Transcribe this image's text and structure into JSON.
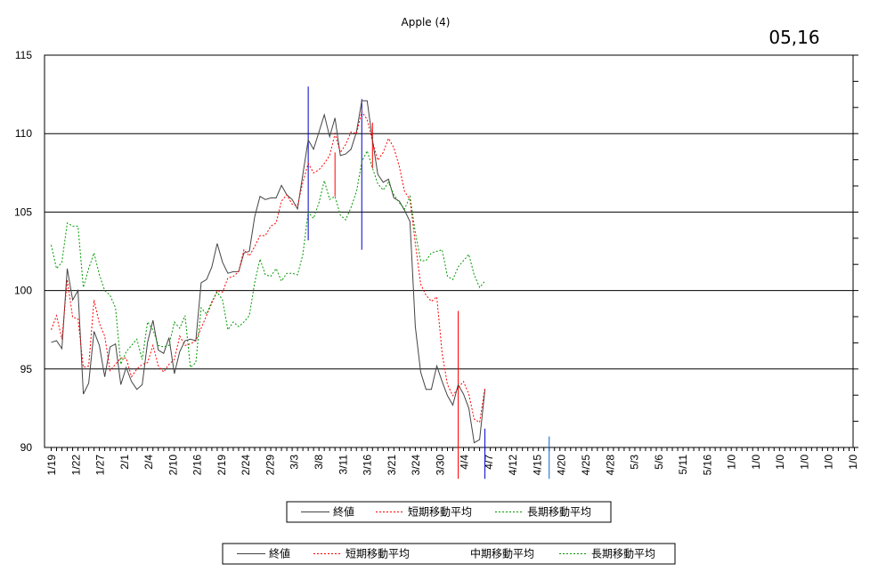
{
  "chart_data": {
    "type": "line",
    "title": "Apple (4)",
    "stamp": "05,16",
    "xlabel": "",
    "ylabel": "",
    "ylim": [
      90,
      115
    ],
    "yticks": [
      90,
      95,
      100,
      105,
      110,
      115
    ],
    "grid": "horizontal",
    "x_tick_labels": [
      "1/19",
      "1/22",
      "1/27",
      "2/1",
      "2/4",
      "2/10",
      "2/16",
      "2/19",
      "2/24",
      "2/29",
      "3/3",
      "3/8",
      "3/11",
      "3/16",
      "3/21",
      "3/24",
      "3/30",
      "4/4",
      "4/7",
      "4/12",
      "4/15",
      "4/20",
      "4/25",
      "4/28",
      "5/3",
      "5/6",
      "5/11",
      "5/16",
      "1/0",
      "1/0",
      "1/0",
      "1/0",
      "1/0",
      "1/0"
    ],
    "series": [
      {
        "name": "終値",
        "color": "#444444",
        "dash": "solid",
        "values": [
          96.7,
          96.8,
          96.3,
          101.4,
          99.4,
          100.0,
          93.4,
          94.1,
          97.4,
          96.5,
          94.5,
          96.4,
          96.6,
          94.0,
          95.1,
          94.2,
          93.7,
          94.0,
          96.7,
          98.1,
          96.2,
          96.0,
          97.0,
          94.7,
          96.1,
          96.8,
          96.9,
          96.8,
          100.5,
          100.7,
          101.5,
          103.0,
          101.8,
          101.1,
          101.2,
          101.2,
          102.4,
          102.5,
          104.7,
          106.0,
          105.8,
          105.9,
          105.9,
          106.7,
          106.1,
          105.8,
          105.2,
          107.4,
          109.6,
          109.0,
          110.1,
          111.2,
          109.8,
          111.0,
          108.6,
          108.7,
          109.0,
          110.1,
          112.1,
          112.1,
          109.6,
          107.4,
          106.9,
          107.1,
          105.9,
          105.7,
          105.1,
          104.4,
          97.7,
          94.8,
          93.7,
          93.7,
          95.2,
          94.2,
          93.3,
          92.7,
          94.0,
          93.4,
          92.5,
          90.3,
          90.5,
          93.7
        ]
      },
      {
        "name": "短期移動平均",
        "color": "#ff0000",
        "dash": "dashed",
        "values": [
          97.5,
          98.4,
          96.9,
          100.7,
          98.3,
          98.2,
          95.1,
          95.2,
          99.4,
          97.9,
          97.1,
          94.9,
          95.3,
          95.7,
          95.7,
          94.5,
          95.0,
          95.3,
          95.4,
          96.5,
          95.2,
          94.8,
          95.3,
          95.6,
          97.1,
          96.5,
          96.6,
          96.8,
          97.6,
          98.4,
          99.2,
          100.0,
          99.9,
          100.8,
          100.9,
          101.2,
          102.6,
          102.2,
          102.8,
          103.5,
          103.5,
          104.1,
          104.3,
          105.7,
          106.1,
          105.5,
          105.4,
          106.9,
          108.1,
          107.5,
          107.7,
          108.1,
          108.6,
          110.0,
          108.8,
          109.3,
          110.1,
          110.0,
          111.4,
          110.9,
          109.5,
          108.3,
          108.8,
          109.7,
          109.1,
          107.9,
          106.3,
          105.8,
          103.0,
          100.4,
          99.7,
          99.3,
          99.6,
          96.0,
          94.0,
          93.3,
          93.8,
          94.2,
          93.4,
          91.8,
          91.6,
          93.8
        ]
      },
      {
        "name": "長期移動平均",
        "color": "#009900",
        "dash": "dashed",
        "values": [
          102.9,
          101.4,
          101.8,
          104.3,
          104.1,
          104.1,
          100.2,
          101.4,
          102.4,
          101.0,
          100.0,
          99.7,
          98.9,
          95.3,
          96.1,
          96.5,
          96.9,
          95.6,
          98.0,
          97.5,
          96.5,
          96.4,
          96.5,
          98.0,
          97.6,
          98.4,
          95.1,
          95.4,
          98.9,
          98.5,
          99.3,
          99.9,
          99.4,
          97.5,
          98.0,
          97.7,
          98.0,
          98.4,
          100.5,
          102.0,
          101.0,
          100.9,
          101.4,
          100.6,
          101.1,
          101.1,
          101.0,
          102.3,
          105.0,
          104.6,
          105.6,
          107.0,
          105.8,
          106.0,
          104.8,
          104.5,
          105.3,
          106.3,
          108.2,
          108.9,
          107.8,
          106.8,
          106.4,
          106.9,
          106.1,
          105.6,
          105.2,
          106.0,
          103.7,
          101.9,
          101.9,
          102.4,
          102.5,
          102.6,
          100.9,
          100.7,
          101.5,
          101.9,
          102.3,
          101.0,
          100.2,
          100.6
        ]
      }
    ],
    "legend_1": {
      "placement": "bottom-center",
      "entries": [
        {
          "label": "終値",
          "color": "#444444",
          "dash": "solid"
        },
        {
          "label": "短期移動平均",
          "color": "#ff0000",
          "dash": "dashed"
        },
        {
          "label": "長期移動平均",
          "color": "#009900",
          "dash": "dashed"
        }
      ]
    },
    "legend_2": {
      "placement": "bottom-center",
      "entries": [
        {
          "label": "終値",
          "color": "#444444",
          "dash": "solid"
        },
        {
          "label": "短期移動平均",
          "color": "#ff0000",
          "dash": "dashed"
        },
        {
          "label": "中期移動平均",
          "color": "#ffffff",
          "dash": "solid"
        },
        {
          "label": "長期移動平均",
          "color": "#009900",
          "dash": "dashed"
        }
      ]
    },
    "vertical_markers": [
      {
        "x_index": 48,
        "from": 103.2,
        "to": 113.0,
        "color": "#0000cc"
      },
      {
        "x_index": 53,
        "from": 106.0,
        "to": 108.8,
        "color": "#ff0000"
      },
      {
        "x_index": 58,
        "from": 102.6,
        "to": 112.2,
        "color": "#0000cc"
      },
      {
        "x_index": 60,
        "from": 107.8,
        "to": 110.7,
        "color": "#ff0000"
      },
      {
        "x_index": 76,
        "from": 88.0,
        "to": 98.7,
        "color": "#ff0000"
      },
      {
        "x_index": 81,
        "from": 88.0,
        "to": 91.2,
        "color": "#0000cc"
      },
      {
        "x_index": 93,
        "from": 88.0,
        "to": 90.7,
        "color": "#0066cc"
      }
    ]
  }
}
